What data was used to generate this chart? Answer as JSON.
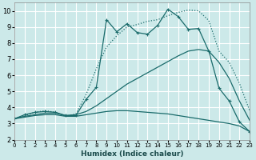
{
  "xlabel": "Humidex (Indice chaleur)",
  "bg_color": "#cce9e9",
  "grid_color": "#ffffff",
  "line_color": "#1a6b6b",
  "xlim": [
    0,
    23
  ],
  "ylim": [
    2,
    10.5
  ],
  "yticks": [
    2,
    3,
    4,
    5,
    6,
    7,
    8,
    9,
    10
  ],
  "xticks": [
    0,
    1,
    2,
    3,
    4,
    5,
    6,
    7,
    8,
    9,
    10,
    11,
    12,
    13,
    14,
    15,
    16,
    17,
    18,
    19,
    20,
    21,
    22,
    23
  ],
  "line1_x": [
    0,
    1,
    2,
    3,
    4,
    5,
    6,
    7,
    8,
    9,
    10,
    11,
    12,
    13,
    14,
    15,
    16,
    17,
    18,
    19,
    20,
    21,
    22,
    23
  ],
  "line1_y": [
    3.3,
    3.55,
    3.7,
    3.75,
    3.7,
    3.5,
    3.5,
    4.5,
    5.25,
    9.45,
    8.7,
    9.2,
    8.65,
    8.55,
    9.1,
    10.1,
    9.65,
    8.85,
    8.9,
    7.5,
    5.2,
    4.4,
    3.1,
    2.5
  ],
  "line2_x": [
    0,
    1,
    2,
    3,
    4,
    5,
    6,
    7,
    8,
    9,
    10,
    11,
    12,
    13,
    14,
    15,
    16,
    17,
    18,
    19,
    20,
    21,
    22,
    23
  ],
  "line2_y": [
    3.3,
    3.45,
    3.55,
    3.65,
    3.65,
    3.5,
    3.55,
    3.75,
    4.1,
    4.55,
    5.0,
    5.45,
    5.8,
    6.15,
    6.5,
    6.85,
    7.2,
    7.5,
    7.6,
    7.5,
    6.8,
    5.8,
    4.4,
    3.2
  ],
  "line3_x": [
    0,
    1,
    2,
    3,
    4,
    5,
    6,
    7,
    8,
    9,
    10,
    11,
    12,
    13,
    14,
    15,
    16,
    17,
    18,
    19,
    20,
    21,
    22,
    23
  ],
  "line3_y": [
    3.3,
    3.4,
    3.5,
    3.55,
    3.55,
    3.45,
    3.45,
    3.55,
    3.65,
    3.75,
    3.8,
    3.8,
    3.75,
    3.7,
    3.65,
    3.6,
    3.5,
    3.4,
    3.3,
    3.2,
    3.1,
    3.0,
    2.85,
    2.5
  ],
  "line4_x": [
    0,
    2,
    3,
    4,
    5,
    6,
    7,
    8,
    9,
    10,
    11,
    12,
    13,
    14,
    15,
    16,
    17,
    18,
    19,
    20,
    21,
    22,
    23
  ],
  "line4_y": [
    3.3,
    3.7,
    3.8,
    3.7,
    3.45,
    3.6,
    4.8,
    6.4,
    7.75,
    8.45,
    9.0,
    9.15,
    9.35,
    9.45,
    9.7,
    9.9,
    10.05,
    10.0,
    9.4,
    7.5,
    6.8,
    5.5,
    3.8
  ]
}
